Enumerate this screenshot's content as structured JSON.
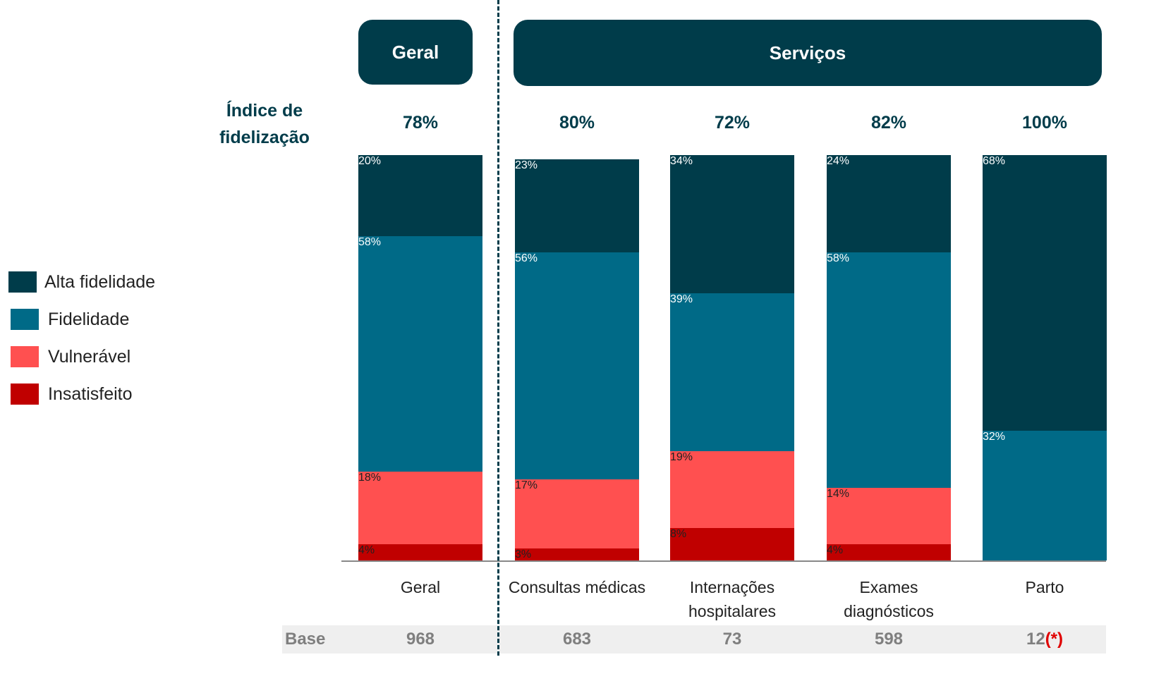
{
  "chart_data": {
    "type": "stacked_bar",
    "groups": [
      "Geral",
      "Serviços"
    ],
    "categories": [
      "Geral",
      "Consultas médicas",
      "Internações hospitalares",
      "Exames diagnósticos",
      "Parto"
    ],
    "ylim": [
      0,
      100
    ],
    "index": {
      "label": "Índice de fidelização",
      "values": [
        78,
        80,
        72,
        82,
        100
      ],
      "value_labels": [
        "78%",
        "80%",
        "72%",
        "82%",
        "100%"
      ]
    },
    "series": [
      {
        "name": "Alta fidelidade",
        "color": "#003c4a",
        "values": [
          20,
          23,
          34,
          24,
          68
        ],
        "value_labels": [
          "20%",
          "23%",
          "34%",
          "24%",
          "68%"
        ]
      },
      {
        "name": "Fidelidade",
        "color": "#006a87",
        "values": [
          58,
          56,
          39,
          58,
          32
        ],
        "value_labels": [
          "58%",
          "56%",
          "39%",
          "58%",
          "32%"
        ]
      },
      {
        "name": "Vulnerável",
        "color": "#ff5050",
        "values": [
          18,
          17,
          19,
          14,
          0
        ],
        "value_labels": [
          "18%",
          "17%",
          "19%",
          "14%",
          null
        ]
      },
      {
        "name": "Insatisfeito",
        "color": "#c00000",
        "values": [
          4,
          3,
          8,
          4,
          0
        ],
        "value_labels": [
          "4%",
          "3%",
          "8%",
          "4%",
          null
        ]
      }
    ],
    "base": {
      "label": "Base",
      "values": [
        968,
        683,
        73,
        598,
        12
      ],
      "note": "(*)"
    }
  }
}
